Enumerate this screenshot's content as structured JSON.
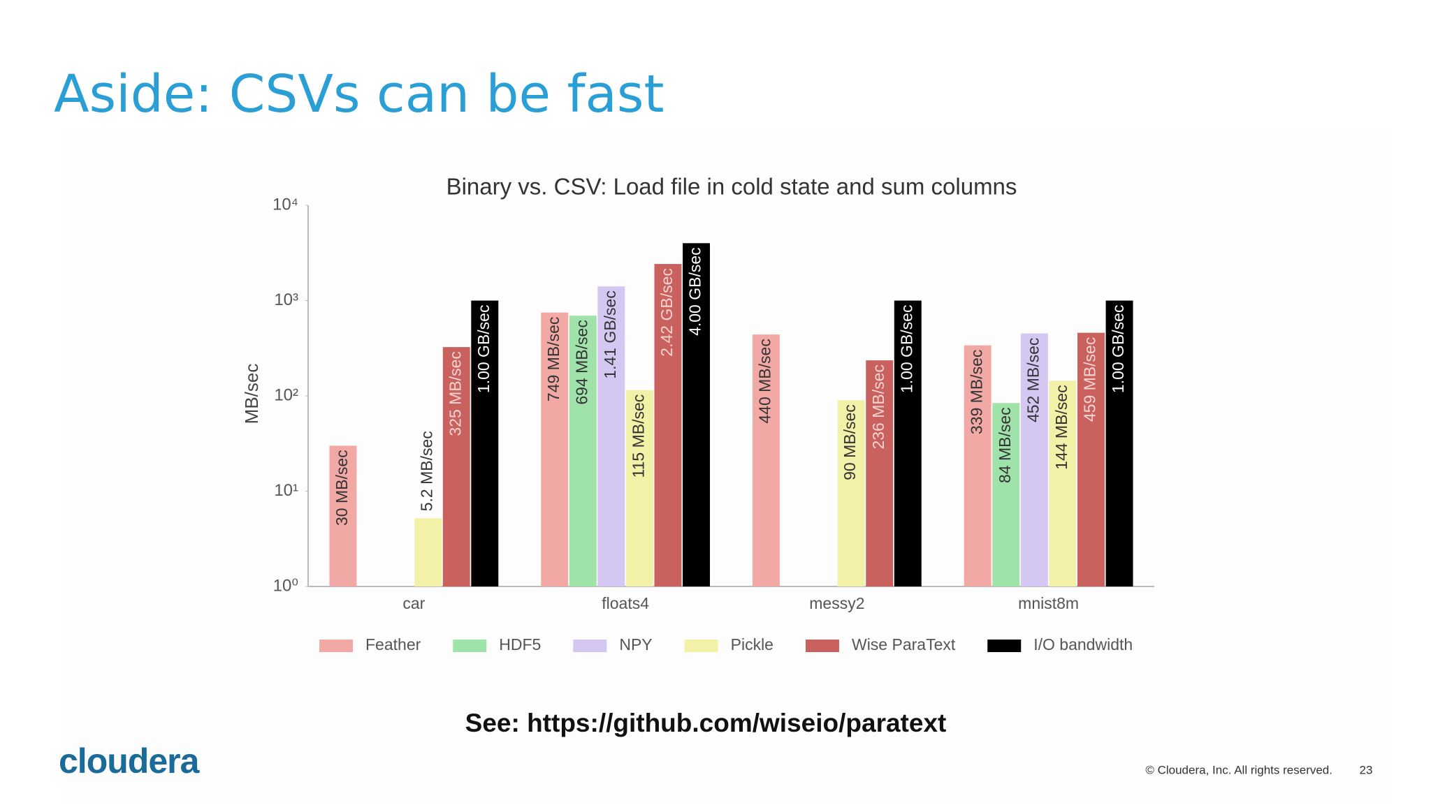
{
  "slide": {
    "title": "Aside: CSVs can be fast",
    "link": "See: https://github.com/wiseio/paratext",
    "logo": "cloudera",
    "copyright": "© Cloudera, Inc. All rights reserved.",
    "page_number": "23"
  },
  "chart_data": {
    "type": "bar",
    "title": "Binary vs. CSV: Load file in cold state and sum columns",
    "y_label": "MB/sec",
    "log_scale": true,
    "grid": false,
    "categories": [
      "car",
      "floats4",
      "messy2",
      "mnist8m"
    ],
    "ylim": [
      1,
      10000
    ],
    "yticks": [
      {
        "value": 1,
        "label": "10⁰"
      },
      {
        "value": 10,
        "label": "10¹"
      },
      {
        "value": 100,
        "label": "10²"
      },
      {
        "value": 1000,
        "label": "10³"
      },
      {
        "value": 10000,
        "label": "10⁴"
      }
    ],
    "legend": "bottom",
    "series": [
      {
        "name": "Feather",
        "color": "#f2a9a6",
        "values": [
          30,
          749,
          440,
          339
        ],
        "value_labels": [
          "30 MB/sec",
          "749 MB/sec",
          "440 MB/sec",
          "339 MB/sec"
        ]
      },
      {
        "name": "HDF5",
        "color": "#9fe3aa",
        "values": [
          null,
          694,
          null,
          84
        ],
        "value_labels": [
          null,
          "694 MB/sec",
          null,
          "84 MB/sec"
        ]
      },
      {
        "name": "NPY",
        "color": "#d4c8f3",
        "values": [
          null,
          1410,
          null,
          452
        ],
        "value_labels": [
          null,
          "1.41 GB/sec",
          null,
          "452 MB/sec"
        ]
      },
      {
        "name": "Pickle",
        "color": "#f3f1a8",
        "values": [
          5.2,
          115,
          90,
          144
        ],
        "value_labels": [
          "5.2 MB/sec",
          "115 MB/sec",
          "90 MB/sec",
          "144 MB/sec"
        ]
      },
      {
        "name": "Wise ParaText",
        "color": "#c9625f",
        "values": [
          325,
          2420,
          236,
          459
        ],
        "value_labels": [
          "325 MB/sec",
          "2.42 GB/sec",
          "236 MB/sec",
          "459 MB/sec"
        ]
      },
      {
        "name": "I/O bandwidth",
        "color": "#000000",
        "values": [
          1000,
          4000,
          1000,
          1000
        ],
        "value_labels": [
          "1.00 GB/sec",
          "4.00 GB/sec",
          "1.00 GB/sec",
          "1.00 GB/sec"
        ]
      }
    ]
  }
}
